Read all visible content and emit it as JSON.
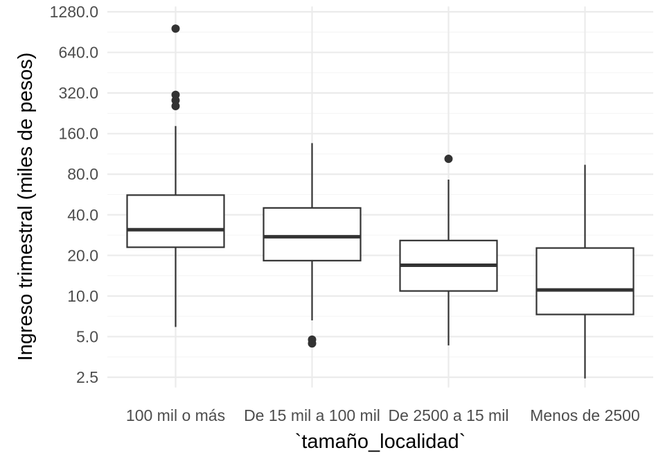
{
  "chart_data": {
    "type": "boxplot",
    "title": "",
    "xlabel": "`tamaño_localidad`",
    "ylabel": "Ingreso trimestral (miles de pesos)",
    "y_scale": "log2",
    "ylim": [
      2.1,
      1400
    ],
    "y_ticks": [
      2.5,
      5,
      10,
      20,
      40,
      80,
      160,
      320,
      640,
      1280
    ],
    "y_tick_labels": [
      "2.5",
      "5.0",
      "10.0",
      "20.0",
      "40.0",
      "80.0",
      "160.0",
      "320.0",
      "640.0",
      "1280.0"
    ],
    "grid": true,
    "categories": [
      "100 mil o más",
      "De 15 mil a 100 mil",
      "De 2500 a 15 mil",
      "Menos de 2500"
    ],
    "boxes": [
      {
        "category": "100 mil o más",
        "whisker_low": 5.9,
        "q1": 23,
        "median": 31,
        "q3": 56,
        "whisker_high": 182,
        "outliers": [
          960,
          310,
          282,
          256
        ]
      },
      {
        "category": "De 15 mil a 100 mil",
        "whisker_low": 6.6,
        "q1": 18.3,
        "median": 27.5,
        "q3": 45,
        "whisker_high": 136,
        "outliers": [
          4.75,
          4.45
        ]
      },
      {
        "category": "De 2500 a 15 mil",
        "whisker_low": 4.3,
        "q1": 10.9,
        "median": 16.9,
        "q3": 25.8,
        "whisker_high": 73,
        "outliers": [
          104
        ]
      },
      {
        "category": "Menos de 2500",
        "whisker_low": 2.45,
        "q1": 7.3,
        "median": 11.1,
        "q3": 22.7,
        "whisker_high": 94,
        "outliers": []
      }
    ],
    "colors": {
      "box_line": "#333333",
      "box_fill": "#ffffff",
      "grid_major": "#ebebeb",
      "grid_minor": "#f5f5f5"
    }
  }
}
